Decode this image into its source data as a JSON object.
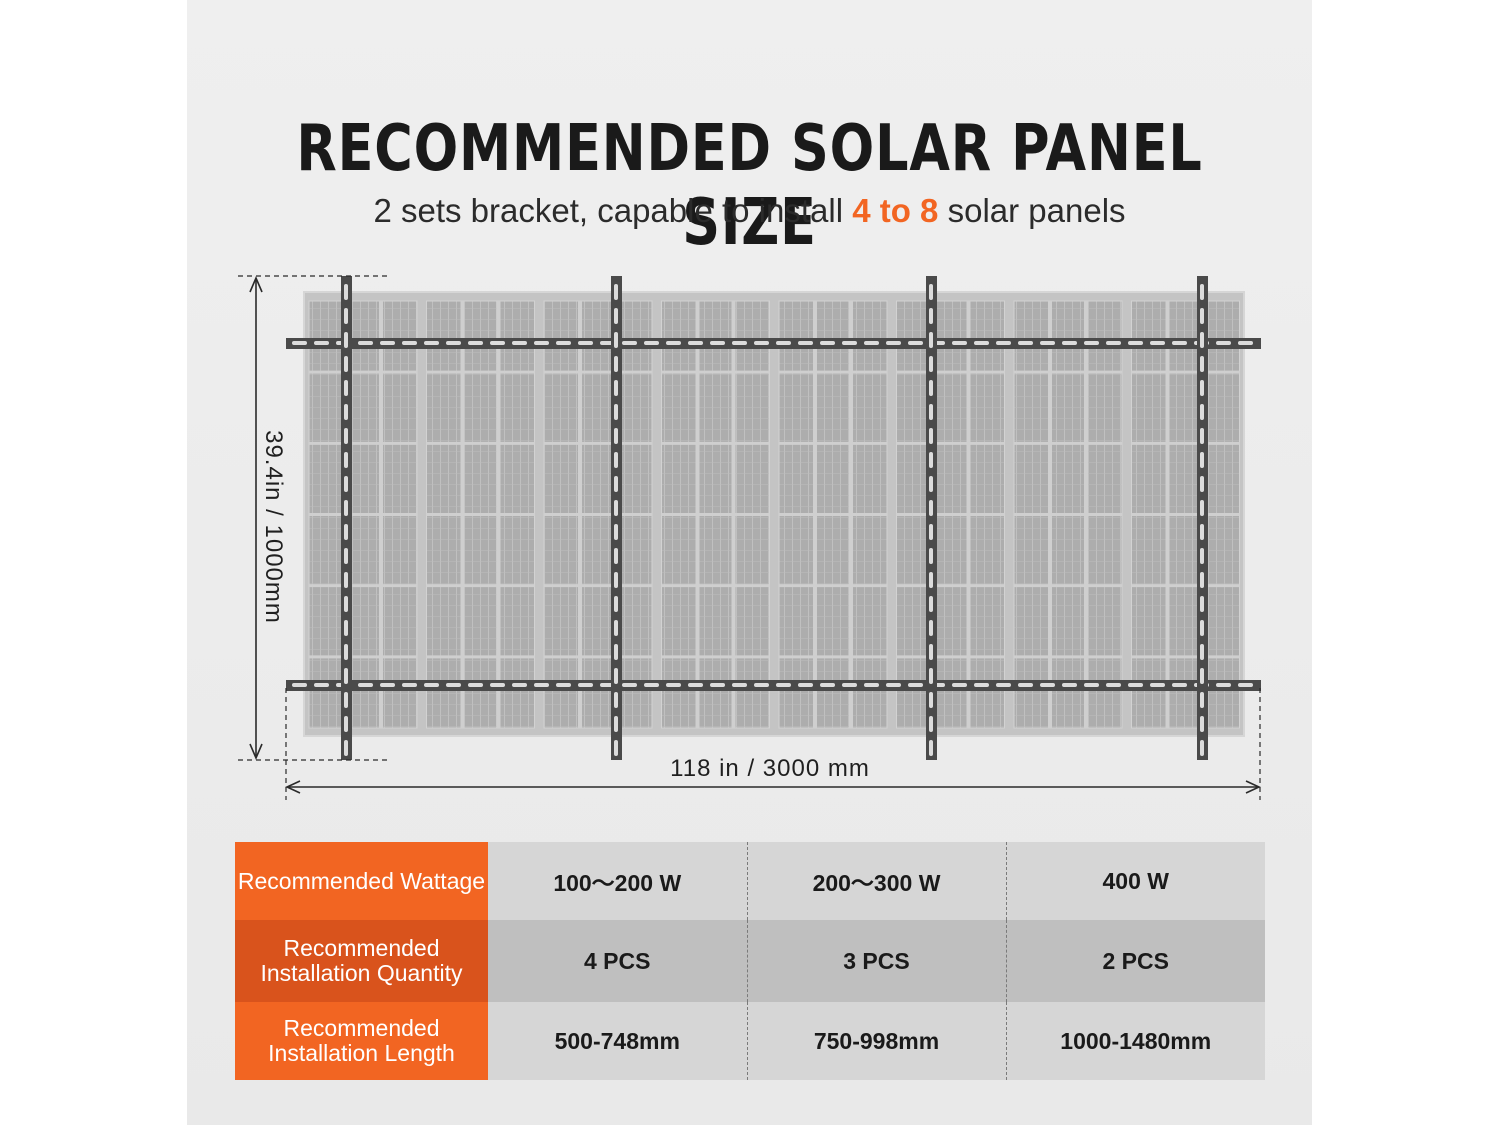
{
  "header": {
    "title": "RECOMMENDED SOLAR PANEL SIZE",
    "subtitle_before": "2 sets bracket, capable to install ",
    "subtitle_highlight": "4 to 8",
    "subtitle_after": " solar panels"
  },
  "dimensions": {
    "width_label": "118 in / 3000 mm",
    "height_label": "39.4in / 1000mm"
  },
  "spec_table": {
    "rows": [
      {
        "label": "Recommended Wattage",
        "values": [
          "100～200 W",
          "200～300 W",
          "400 W"
        ]
      },
      {
        "label": "Recommended Installation Quantity",
        "values": [
          "4 PCS",
          "3 PCS",
          "2 PCS"
        ]
      },
      {
        "label": "Recommended Installation Length",
        "values": [
          "500-748mm",
          "750-998mm",
          "1000-1480mm"
        ]
      }
    ]
  },
  "colors": {
    "accent": "#f26522",
    "accent_dark": "#d9531c",
    "bracket": "#4a4a4a",
    "panel": "#a9a9a9"
  }
}
